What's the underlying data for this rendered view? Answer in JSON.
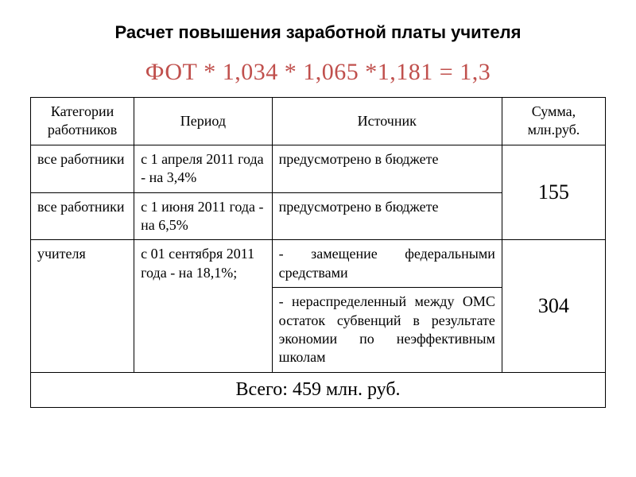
{
  "title": "Расчет повышения заработной платы учителя",
  "formula": "ФОТ * 1,034 * 1,065 *1,181 = 1,3",
  "colors": {
    "formula": "#c0504d",
    "text": "#000000",
    "border": "#000000",
    "background": "#ffffff"
  },
  "table": {
    "columns": [
      "Категории работников",
      "Период",
      "Источник",
      "Сумма, млн.руб."
    ],
    "column_widths_pct": [
      18,
      24,
      40,
      18
    ],
    "rows": [
      {
        "category": "все работники",
        "period": "с 1 апреля 2011 года - на 3,4%",
        "source": "предусмотрено в бюджете",
        "amount": "155",
        "amount_rowspan": 2
      },
      {
        "category": "все работники",
        "period": "с 1 июня 2011 года - на 6,5%",
        "source": "предусмотрено в бюджете"
      },
      {
        "category": "учителя",
        "category_rowspan": 2,
        "period": "с 01 сентября 2011 года - на 18,1%;",
        "period_rowspan": 2,
        "source": "- замещение федеральными средствами",
        "source_justify": true,
        "amount": "304",
        "amount_rowspan": 2
      },
      {
        "source": "- нераспределенный между ОМС остаток субвенций в результате экономии по неэффективным школам",
        "source_justify": true
      }
    ],
    "footer": "Всего: 459 млн. руб."
  }
}
